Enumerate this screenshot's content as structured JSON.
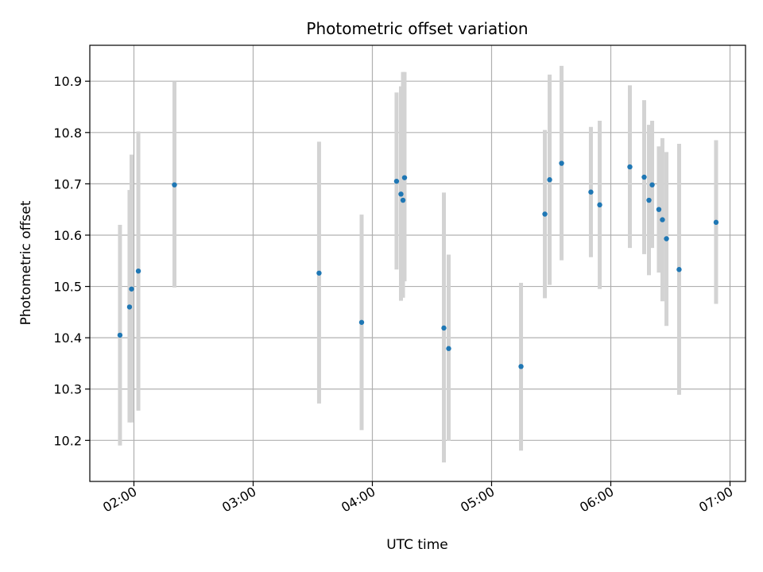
{
  "chart_data": {
    "type": "scatter",
    "title": "Photometric offset variation",
    "xlabel": "UTC time",
    "ylabel": "Photometric offset",
    "x_unit": "hours (UTC)",
    "xlim": [
      1.63,
      7.13
    ],
    "ylim": [
      10.12,
      10.97
    ],
    "x_ticks": [
      {
        "value": 2,
        "label": "02:00"
      },
      {
        "value": 3,
        "label": "03:00"
      },
      {
        "value": 4,
        "label": "04:00"
      },
      {
        "value": 5,
        "label": "05:00"
      },
      {
        "value": 6,
        "label": "06:00"
      },
      {
        "value": 7,
        "label": "07:00"
      }
    ],
    "y_ticks": [
      {
        "value": 10.2,
        "label": "10.2"
      },
      {
        "value": 10.3,
        "label": "10.3"
      },
      {
        "value": 10.4,
        "label": "10.4"
      },
      {
        "value": 10.5,
        "label": "10.5"
      },
      {
        "value": 10.6,
        "label": "10.6"
      },
      {
        "value": 10.7,
        "label": "10.7"
      },
      {
        "value": 10.8,
        "label": "10.8"
      },
      {
        "value": 10.9,
        "label": "10.9"
      }
    ],
    "grid": true,
    "marker_color": "#1f77b4",
    "errorbar_color": "#d3d3d3",
    "points": [
      {
        "x": 1.883,
        "y": 10.405,
        "ylo": 10.19,
        "yhi": 10.62
      },
      {
        "x": 1.963,
        "y": 10.46,
        "ylo": 10.235,
        "yhi": 10.688
      },
      {
        "x": 1.98,
        "y": 10.495,
        "ylo": 10.235,
        "yhi": 10.757
      },
      {
        "x": 2.037,
        "y": 10.53,
        "ylo": 10.258,
        "yhi": 10.802
      },
      {
        "x": 2.34,
        "y": 10.698,
        "ylo": 10.498,
        "yhi": 10.9
      },
      {
        "x": 3.553,
        "y": 10.526,
        "ylo": 10.272,
        "yhi": 10.782
      },
      {
        "x": 3.91,
        "y": 10.43,
        "ylo": 10.22,
        "yhi": 10.64
      },
      {
        "x": 4.203,
        "y": 10.705,
        "ylo": 10.533,
        "yhi": 10.878
      },
      {
        "x": 4.24,
        "y": 10.68,
        "ylo": 10.472,
        "yhi": 10.89
      },
      {
        "x": 4.257,
        "y": 10.668,
        "ylo": 10.478,
        "yhi": 10.918
      },
      {
        "x": 4.27,
        "y": 10.712,
        "ylo": 10.51,
        "yhi": 10.918
      },
      {
        "x": 4.6,
        "y": 10.419,
        "ylo": 10.157,
        "yhi": 10.683
      },
      {
        "x": 4.64,
        "y": 10.379,
        "ylo": 10.199,
        "yhi": 10.562
      },
      {
        "x": 5.247,
        "y": 10.344,
        "ylo": 10.18,
        "yhi": 10.507
      },
      {
        "x": 5.447,
        "y": 10.641,
        "ylo": 10.477,
        "yhi": 10.805
      },
      {
        "x": 5.487,
        "y": 10.708,
        "ylo": 10.503,
        "yhi": 10.913
      },
      {
        "x": 5.587,
        "y": 10.74,
        "ylo": 10.551,
        "yhi": 10.93
      },
      {
        "x": 5.833,
        "y": 10.684,
        "ylo": 10.557,
        "yhi": 10.811
      },
      {
        "x": 5.907,
        "y": 10.659,
        "ylo": 10.495,
        "yhi": 10.823
      },
      {
        "x": 6.16,
        "y": 10.733,
        "ylo": 10.575,
        "yhi": 10.892
      },
      {
        "x": 6.28,
        "y": 10.713,
        "ylo": 10.563,
        "yhi": 10.863
      },
      {
        "x": 6.32,
        "y": 10.668,
        "ylo": 10.522,
        "yhi": 10.815
      },
      {
        "x": 6.347,
        "y": 10.698,
        "ylo": 10.575,
        "yhi": 10.823
      },
      {
        "x": 6.403,
        "y": 10.65,
        "ylo": 10.527,
        "yhi": 10.773
      },
      {
        "x": 6.433,
        "y": 10.63,
        "ylo": 10.471,
        "yhi": 10.789
      },
      {
        "x": 6.467,
        "y": 10.593,
        "ylo": 10.423,
        "yhi": 10.762
      },
      {
        "x": 6.573,
        "y": 10.533,
        "ylo": 10.289,
        "yhi": 10.778
      },
      {
        "x": 6.883,
        "y": 10.625,
        "ylo": 10.466,
        "yhi": 10.785
      }
    ]
  }
}
